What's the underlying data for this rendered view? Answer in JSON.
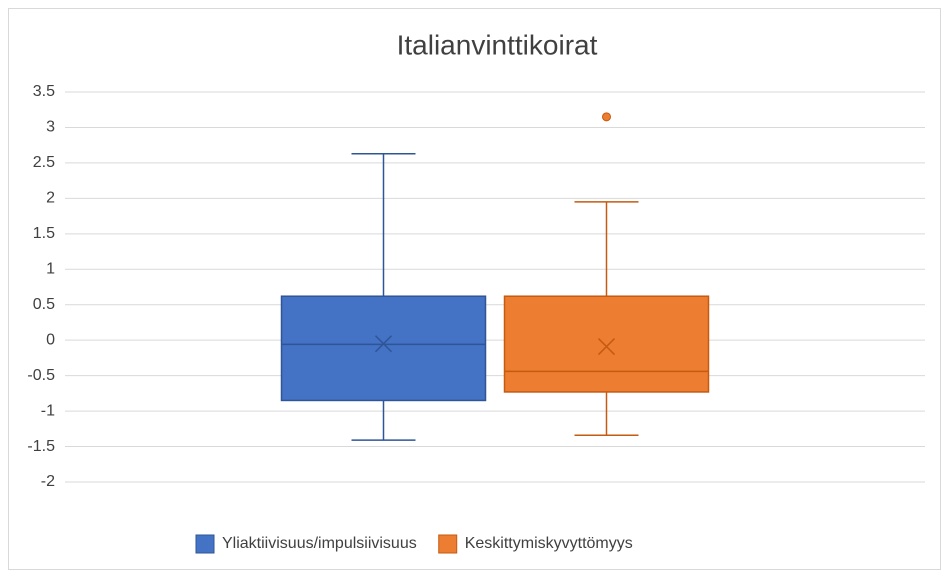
{
  "chart_data": {
    "type": "box",
    "title": "Italianvinttikoirat",
    "ylim": [
      -2,
      3.5
    ],
    "yticks": [
      3.5,
      3,
      2.5,
      2,
      1.5,
      1,
      0.5,
      0,
      -0.5,
      -1,
      -1.5,
      -2
    ],
    "grid": true,
    "legend": "bottom",
    "series": [
      {
        "name": "Yliaktiivisuus/impulsiivisuus",
        "color": "#4472c4",
        "stroke": "#2f5597",
        "min": -1.41,
        "q1": -0.85,
        "median": -0.06,
        "q3": 0.62,
        "max": 2.63,
        "mean": -0.05,
        "outliers": []
      },
      {
        "name": "Keskittymiskyvyttömyys",
        "color": "#ed7d31",
        "stroke": "#c55a11",
        "min": -1.34,
        "q1": -0.73,
        "median": -0.44,
        "q3": 0.62,
        "max": 1.95,
        "mean": -0.09,
        "outliers": [
          3.15
        ]
      }
    ]
  }
}
